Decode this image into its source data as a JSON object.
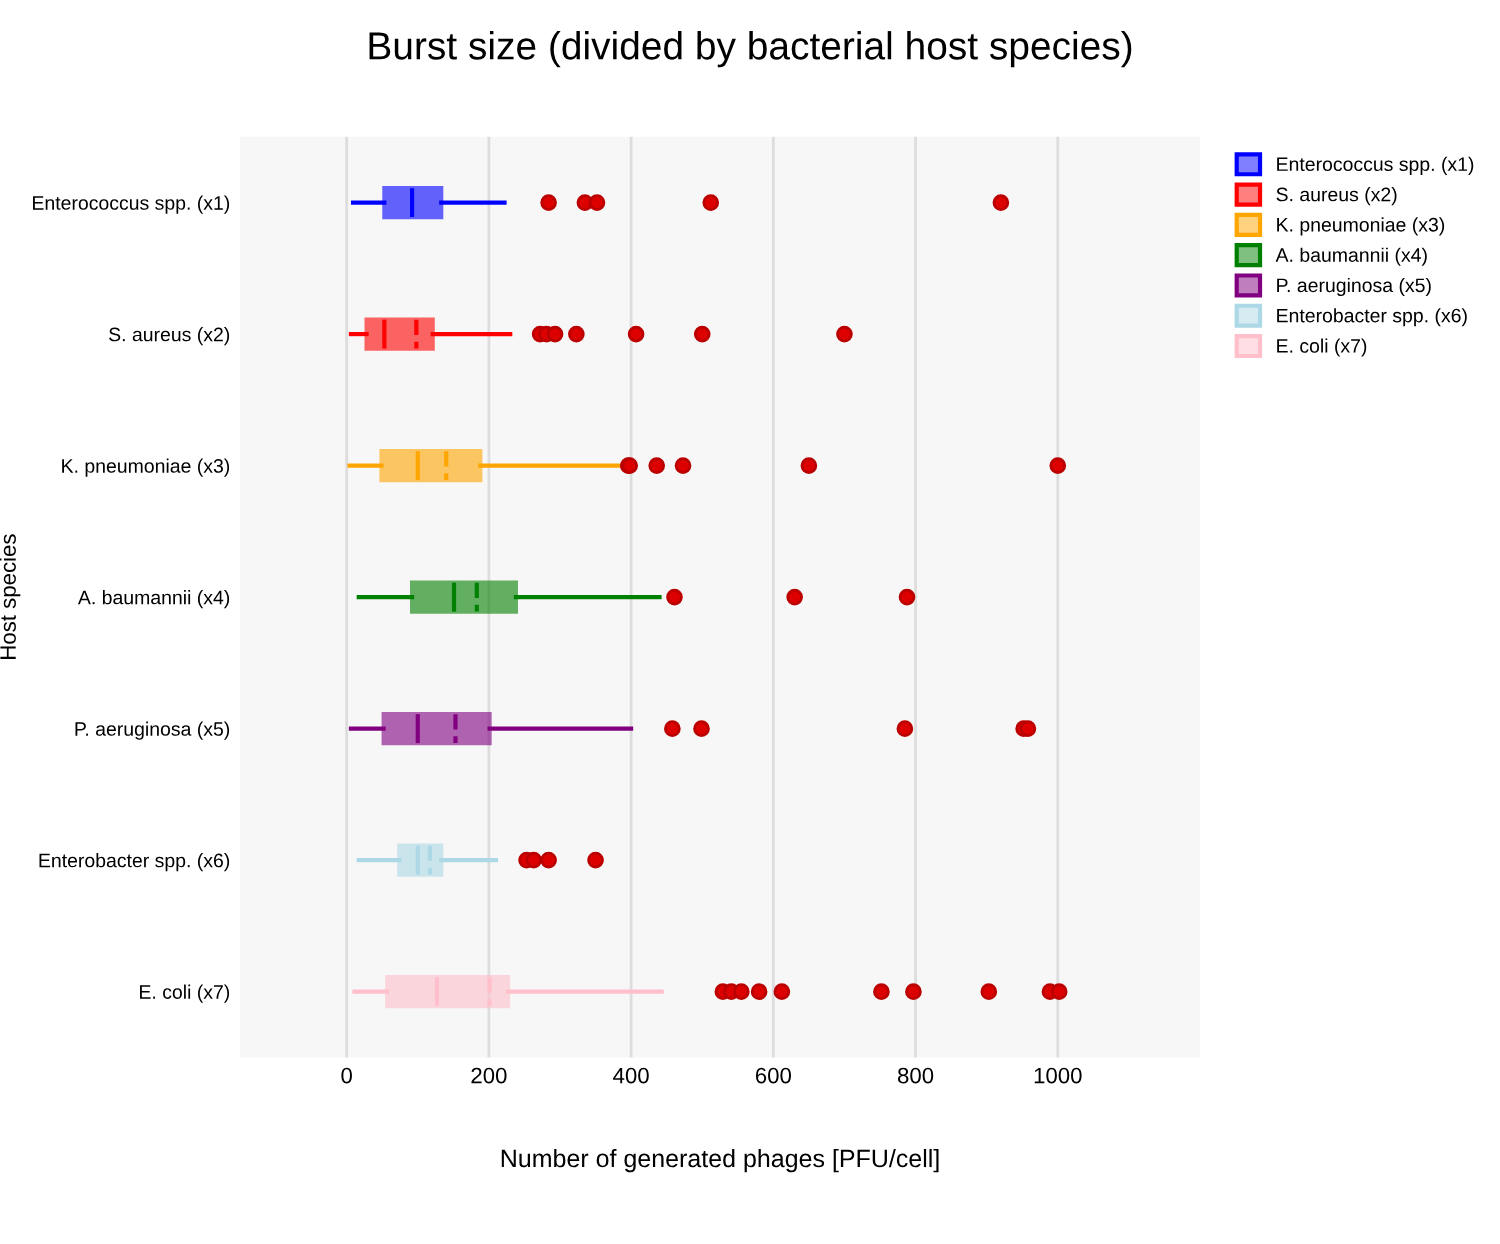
{
  "chart_data": {
    "type": "box",
    "orientation": "horizontal",
    "title": "Burst size (divided by bacterial host species)",
    "xlabel": "Number of generated phages [PFU/cell]",
    "ylabel": "Host species",
    "categories": [
      "Enterococcus spp. (x1)",
      "S. aureus (x2)",
      "K. pneumoniae (x3)",
      "A. baumannii (x4)",
      "P. aeruginosa (x5)",
      "Enterobacter spp. (x6)",
      "E. coli (x7)"
    ],
    "series": [
      {
        "name": "Enterococcus spp. (x1)",
        "color": "#0000ff",
        "boxes": [
          {
            "low": 9,
            "q1": 53,
            "median": 92,
            "q3": 133,
            "high": 222,
            "outliers": [
              284,
              335,
              352,
              512,
              920
            ]
          },
          null,
          null,
          null,
          null,
          null,
          null
        ]
      },
      {
        "name": "S. aureus (x2)",
        "color": "#ff0000",
        "boxes": [
          null,
          {
            "low": 6,
            "q1": 28,
            "median": 53,
            "q3": 121,
            "high": 230,
            "mean": 98,
            "outliers": [
              272,
              281,
              293,
              323,
              407,
              500,
              700
            ]
          },
          null,
          null,
          null,
          null,
          null
        ]
      },
      {
        "name": "K. pneumoniae (x3)",
        "color": "#ffa500",
        "boxes": [
          null,
          null,
          {
            "low": 4,
            "q1": 49,
            "median": 100,
            "q3": 188,
            "high": 385,
            "mean": 140,
            "outliers": [
              396,
              398,
              436,
              473,
              650,
              1000
            ]
          },
          null,
          null,
          null,
          null
        ]
      },
      {
        "name": "A. baumannii (x4)",
        "color": "#008000",
        "boxes": [
          null,
          null,
          null,
          {
            "low": 17,
            "q1": 92,
            "median": 151,
            "q3": 238,
            "high": 440,
            "mean": 183,
            "outliers": [
              461,
              630,
              788
            ]
          },
          null,
          null,
          null
        ]
      },
      {
        "name": "P. aeruginosa (x5)",
        "color": "#800080",
        "boxes": [
          null,
          null,
          null,
          null,
          {
            "low": 6,
            "q1": 52,
            "median": 100,
            "q3": 201,
            "high": 400,
            "mean": 153,
            "outliers": [
              458,
              499,
              785,
              952,
              958
            ]
          },
          null,
          null
        ]
      },
      {
        "name": "Enterobacter spp. (x6)",
        "color": "#add8e6",
        "boxes": [
          null,
          null,
          null,
          null,
          null,
          {
            "low": 17,
            "q1": 74,
            "median": 100,
            "q3": 133,
            "high": 210,
            "mean": 117,
            "outliers": [
              253,
              263,
              284,
              350
            ]
          },
          null
        ]
      },
      {
        "name": "E. coli (x7)",
        "color": "#ffc0cb",
        "boxes": [
          null,
          null,
          null,
          null,
          null,
          null,
          {
            "low": 11,
            "q1": 57,
            "median": 127,
            "q3": 227,
            "high": 443,
            "mean": 201,
            "outliers": [
              529,
              541,
              555,
              580,
              612,
              752,
              797,
              903,
              989,
              1002
            ]
          }
        ]
      }
    ],
    "xlim": [
      -150,
      1200
    ],
    "xticks": [
      0,
      200,
      400,
      600,
      800,
      1000
    ],
    "grid": "x",
    "legend": "top right"
  }
}
